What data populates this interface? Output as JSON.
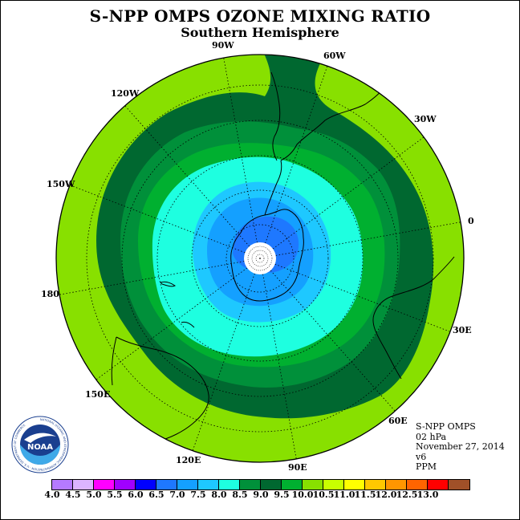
{
  "header": {
    "title": "S-NPP OMPS OZONE MIXING RATIO",
    "subtitle": "Southern Hemisphere"
  },
  "map": {
    "projection": "south-polar-stereographic",
    "meridian_labels": [
      "0",
      "30E",
      "60E",
      "90E",
      "120E",
      "150E",
      "180",
      "150W",
      "120W",
      "90W",
      "60W",
      "30W"
    ],
    "contour_levels_ppm": [
      7.0,
      7.5,
      8.0,
      8.5,
      9.0,
      9.5,
      10.0
    ],
    "field_minimum_ppm": 6.5
  },
  "info": {
    "instrument": "S-NPP OMPS",
    "level": "02 hPa",
    "date": "November 27, 2014",
    "version": "v6",
    "units": "PPM"
  },
  "logo": {
    "text": "NOAA",
    "ring_text": "NATIONAL OCEANIC AND ATMOSPHERIC ADMINISTRATION · U.S. DEPARTMENT OF COMMERCE"
  },
  "colorbar": {
    "labels": [
      "4.0",
      "4.5",
      "5.0",
      "5.5",
      "6.0",
      "6.5",
      "7.0",
      "7.5",
      "8.0",
      "8.5",
      "9.0",
      "9.5",
      "10.0",
      "10.5",
      "11.0",
      "11.5",
      "12.0",
      "12.5",
      "13.0"
    ],
    "colors": [
      "#b57aff",
      "#dcb4ff",
      "#ff00ff",
      "#a000ff",
      "#0000ff",
      "#1e78ff",
      "#14a0ff",
      "#1ec8ff",
      "#1effe0",
      "#00903a",
      "#006830",
      "#00b030",
      "#88e000",
      "#c8ff00",
      "#ffff00",
      "#ffc800",
      "#ff9600",
      "#ff6400",
      "#ff0000",
      "#a05028"
    ]
  },
  "fill_colors": {
    "c9_5": "#c8ff00",
    "c9_0": "#88e000",
    "c8_5": "#006830",
    "c8_0": "#00903a",
    "c7_5": "#00b030",
    "c7_0": "#1effe0",
    "c6_5": "#1ec8ff",
    "c6_0": "#14a0ff",
    "c5_5": "#1e78ff",
    "coast": "#000000",
    "pole": "#ffffff"
  }
}
